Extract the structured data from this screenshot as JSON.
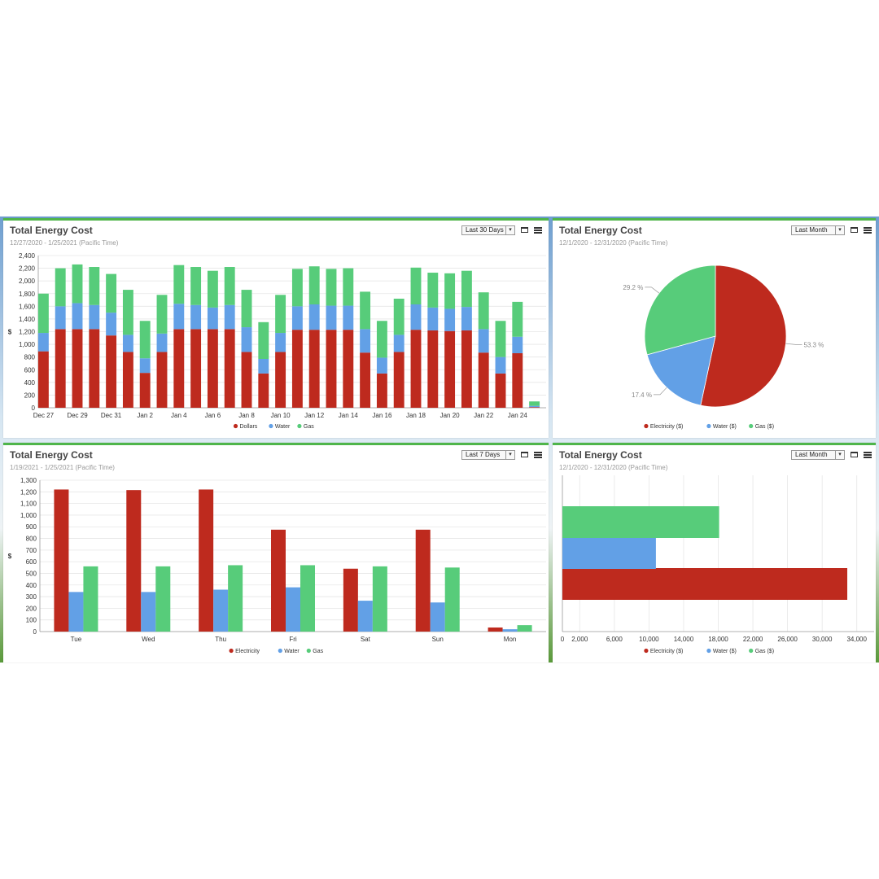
{
  "colors": {
    "electricity": "#be2a1e",
    "water": "#62a0e6",
    "gas": "#57cc7a",
    "panel_border": "#4fb54a"
  },
  "icons": {
    "maximize": "window-icon",
    "menu": "hamburger-menu-icon"
  },
  "panels": [
    {
      "title": "Total Energy Cost",
      "subtitle": "12/27/2020 - 1/25/2021 (Pacific Time)",
      "range": "Last 30 Days"
    },
    {
      "title": "Total Energy Cost",
      "subtitle": "12/1/2020 - 12/31/2020 (Pacific Time)",
      "range": "Last Month"
    },
    {
      "title": "Total Energy Cost",
      "subtitle": "1/19/2021 - 1/25/2021 (Pacific Time)",
      "range": "Last 7 Days"
    },
    {
      "title": "Total Energy Cost",
      "subtitle": "12/1/2020 - 12/31/2020 (Pacific Time)",
      "range": "Last Month"
    }
  ],
  "chart_data": [
    {
      "type": "bar",
      "stacked": true,
      "ylabel": "$",
      "ylim": [
        0,
        2400
      ],
      "yticks": [
        "0",
        "200",
        "400",
        "600",
        "800",
        "1,000",
        "1,200",
        "1,400",
        "1,600",
        "1,800",
        "2,000",
        "2,200",
        "2,400"
      ],
      "categories": [
        "Dec 27",
        "Dec 28",
        "Dec 29",
        "Dec 30",
        "Dec 31",
        "Jan 1",
        "Jan 2",
        "Jan 3",
        "Jan 4",
        "Jan 5",
        "Jan 6",
        "Jan 7",
        "Jan 8",
        "Jan 9",
        "Jan 10",
        "Jan 11",
        "Jan 12",
        "Jan 13",
        "Jan 14",
        "Jan 15",
        "Jan 16",
        "Jan 17",
        "Jan 18",
        "Jan 19",
        "Jan 20",
        "Jan 21",
        "Jan 22",
        "Jan 23",
        "Jan 24",
        "Jan 25"
      ],
      "xtick_labels": [
        "Dec 27",
        "",
        "Dec 29",
        "",
        "Dec 31",
        "",
        "Jan 2",
        "",
        "Jan 4",
        "",
        "Jan 6",
        "",
        "Jan 8",
        "",
        "Jan 10",
        "",
        "Jan 12",
        "",
        "Jan 14",
        "",
        "Jan 16",
        "",
        "Jan 18",
        "",
        "Jan 20",
        "",
        "Jan 22",
        "",
        "Jan 24",
        ""
      ],
      "series": [
        {
          "name": "Dollars",
          "values": [
            890,
            1240,
            1240,
            1240,
            1140,
            880,
            550,
            880,
            1240,
            1240,
            1240,
            1240,
            880,
            540,
            880,
            1230,
            1230,
            1230,
            1230,
            870,
            540,
            880,
            1230,
            1220,
            1210,
            1220,
            870,
            540,
            860,
            10
          ]
        },
        {
          "name": "Water",
          "values": [
            290,
            360,
            410,
            380,
            360,
            270,
            230,
            290,
            400,
            380,
            340,
            380,
            390,
            230,
            300,
            370,
            400,
            380,
            380,
            370,
            250,
            270,
            400,
            360,
            350,
            370,
            370,
            260,
            260,
            20
          ]
        },
        {
          "name": "Gas",
          "values": [
            620,
            600,
            610,
            600,
            610,
            710,
            590,
            610,
            610,
            600,
            580,
            600,
            590,
            580,
            600,
            590,
            600,
            580,
            590,
            590,
            580,
            570,
            580,
            550,
            560,
            570,
            580,
            570,
            550,
            70
          ]
        }
      ],
      "legend": [
        "Dollars",
        "Water",
        "Gas"
      ]
    },
    {
      "type": "pie",
      "slices": [
        {
          "name": "Electricity ($)",
          "value": 53.3,
          "label": "53.3 %"
        },
        {
          "name": "Water ($)",
          "value": 17.4,
          "label": "17.4 %"
        },
        {
          "name": "Gas ($)",
          "value": 29.2,
          "label": "29.2 %"
        }
      ],
      "legend": [
        "Electricity ($)",
        "Water ($)",
        "Gas ($)"
      ]
    },
    {
      "type": "bar",
      "ylabel": "$",
      "ylim": [
        0,
        1300
      ],
      "yticks": [
        "0",
        "100",
        "200",
        "300",
        "400",
        "500",
        "600",
        "700",
        "800",
        "900",
        "1,000",
        "1,100",
        "1,200",
        "1,300"
      ],
      "categories": [
        "Tue",
        "Wed",
        "Thu",
        "Fri",
        "Sat",
        "Sun",
        "Mon"
      ],
      "series": [
        {
          "name": "Electricity",
          "values": [
            1220,
            1215,
            1220,
            875,
            540,
            875,
            35
          ]
        },
        {
          "name": "Water",
          "values": [
            340,
            340,
            360,
            380,
            265,
            250,
            20
          ]
        },
        {
          "name": "Gas",
          "values": [
            560,
            560,
            570,
            570,
            560,
            550,
            55
          ]
        }
      ],
      "legend": [
        "Electricity",
        "Water",
        "Gas"
      ]
    },
    {
      "type": "bar",
      "orientation": "horizontal",
      "xlim": [
        0,
        36000
      ],
      "xticks": [
        "0",
        "2,000",
        "6,000",
        "10,000",
        "14,000",
        "18,000",
        "22,000",
        "26,000",
        "30,000",
        "34,000"
      ],
      "xtick_values": [
        0,
        2000,
        6000,
        10000,
        14000,
        18000,
        22000,
        26000,
        30000,
        34000
      ],
      "series": [
        {
          "name": "Electricity ($)",
          "value": 32900
        },
        {
          "name": "Water ($)",
          "value": 10800
        },
        {
          "name": "Gas ($)",
          "value": 18100
        }
      ],
      "legend": [
        "Electricity ($)",
        "Water ($)",
        "Gas ($)"
      ]
    }
  ]
}
